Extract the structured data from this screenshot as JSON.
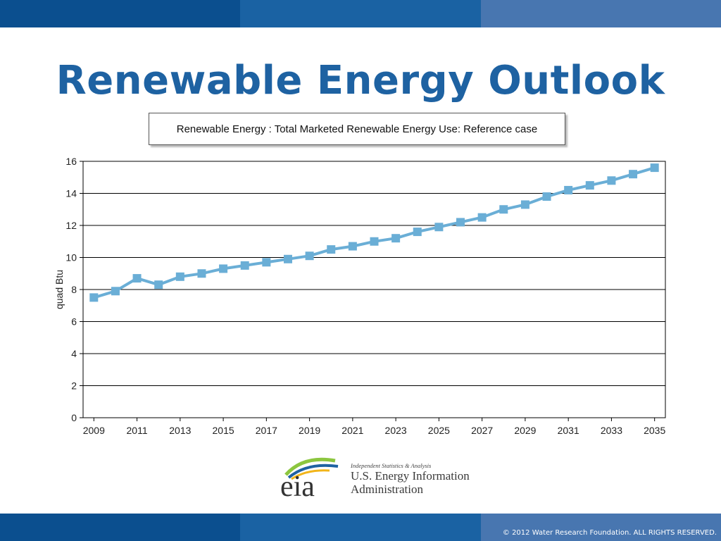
{
  "slide": {
    "title": "Renewable Energy Outlook",
    "footer": "© 2012 Water Research Foundation. ALL RIGHTS RESERVED."
  },
  "colors": {
    "band_dark": "#0b4f8f",
    "band_mid": "#1a62a3",
    "band_light": "#4876b0",
    "title": "#1e62a2",
    "series": "#6aaed6"
  },
  "chart_data": {
    "type": "line",
    "title": "Renewable Energy : Total Marketed Renewable Energy Use: Reference case",
    "xlabel": "",
    "ylabel": "quad Btu",
    "ylim": [
      0,
      16
    ],
    "yticks": [
      0,
      2,
      4,
      6,
      8,
      10,
      12,
      14,
      16
    ],
    "xticks": [
      2009,
      2011,
      2013,
      2015,
      2017,
      2019,
      2021,
      2023,
      2025,
      2027,
      2029,
      2031,
      2033,
      2035
    ],
    "grid": true,
    "series": [
      {
        "x": [
          2009,
          2010,
          2011,
          2012,
          2013,
          2014,
          2015,
          2016,
          2017,
          2018,
          2019,
          2020,
          2021,
          2022,
          2023,
          2024,
          2025,
          2026,
          2027,
          2028,
          2029,
          2030,
          2031,
          2032,
          2033,
          2034,
          2035
        ],
        "values": [
          7.5,
          7.9,
          8.7,
          8.3,
          8.8,
          9.0,
          9.3,
          9.5,
          9.7,
          9.9,
          10.1,
          10.5,
          10.7,
          11.0,
          11.2,
          11.6,
          11.9,
          12.2,
          12.5,
          13.0,
          13.3,
          13.8,
          14.2,
          14.5,
          14.8,
          15.2,
          15.6
        ]
      }
    ]
  },
  "logo": {
    "mark": "eia",
    "tagline": "Independent Statistics & Analysis",
    "name_line1": "U.S. Energy Information",
    "name_line2": "Administration"
  }
}
